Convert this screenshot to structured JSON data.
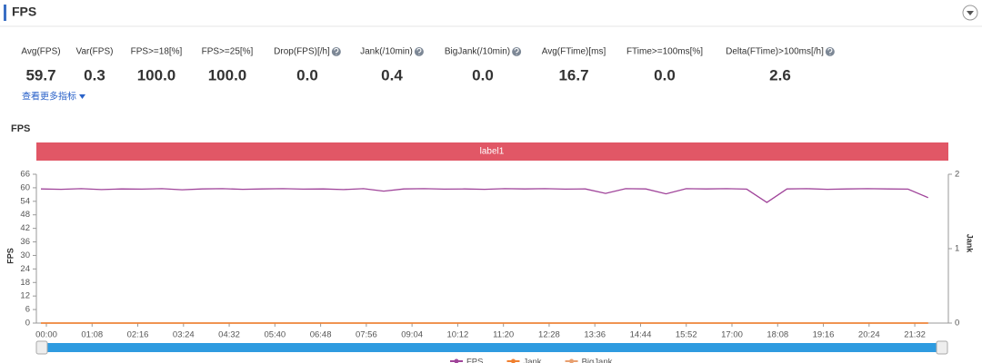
{
  "header": {
    "title": "FPS"
  },
  "metrics": [
    {
      "label": "Avg(FPS)",
      "value": "59.7"
    },
    {
      "label": "Var(FPS)",
      "value": "0.3"
    },
    {
      "label": "FPS>=18[%]",
      "value": "100.0"
    },
    {
      "label": "FPS>=25[%]",
      "value": "100.0"
    },
    {
      "label": "Drop(FPS)[/h]",
      "value": "0.0"
    },
    {
      "label": "Jank(/10min)",
      "value": "0.4"
    },
    {
      "label": "BigJank(/10min)",
      "value": "0.0"
    },
    {
      "label": "Avg(FTime)[ms]",
      "value": "16.7"
    },
    {
      "label": "FTime>=100ms[%]",
      "value": "0.0"
    },
    {
      "label": "Delta(FTime)>100ms[/h]",
      "value": "2.6"
    }
  ],
  "more_link": "查看更多指标",
  "chart_data": {
    "type": "line",
    "title": "FPS",
    "band_label": "label1",
    "y_label": "FPS",
    "y2_label": "Jank",
    "x": [
      0,
      30,
      60,
      90,
      120,
      150,
      180,
      210,
      240,
      270,
      300,
      330,
      360,
      390,
      420,
      450,
      480,
      510,
      540,
      570,
      600,
      630,
      660,
      690,
      720,
      750,
      780,
      810,
      840,
      870,
      900,
      930,
      960,
      990,
      1020,
      1050,
      1080,
      1110,
      1140,
      1170,
      1200,
      1230,
      1260,
      1290,
      1320
    ],
    "xlim": [
      0,
      1346
    ],
    "xticks": [
      {
        "value": 0,
        "label": "00:00"
      },
      {
        "value": 68,
        "label": "01:08"
      },
      {
        "value": 136,
        "label": "02:16"
      },
      {
        "value": 204,
        "label": "03:24"
      },
      {
        "value": 272,
        "label": "04:32"
      },
      {
        "value": 340,
        "label": "05:40"
      },
      {
        "value": 408,
        "label": "06:48"
      },
      {
        "value": 476,
        "label": "07:56"
      },
      {
        "value": 544,
        "label": "09:04"
      },
      {
        "value": 612,
        "label": "10:12"
      },
      {
        "value": 680,
        "label": "11:20"
      },
      {
        "value": 748,
        "label": "12:28"
      },
      {
        "value": 816,
        "label": "13:36"
      },
      {
        "value": 884,
        "label": "14:44"
      },
      {
        "value": 952,
        "label": "15:52"
      },
      {
        "value": 1020,
        "label": "17:00"
      },
      {
        "value": 1088,
        "label": "18:08"
      },
      {
        "value": 1156,
        "label": "19:16"
      },
      {
        "value": 1224,
        "label": "20:24"
      },
      {
        "value": 1292,
        "label": "21:32"
      }
    ],
    "ylim": [
      0,
      66
    ],
    "yticks": [
      0,
      6,
      12,
      18,
      24,
      30,
      36,
      42,
      48,
      54,
      60,
      66
    ],
    "y2lim": [
      0,
      2
    ],
    "y2ticks": [
      0,
      1,
      2
    ],
    "series": [
      {
        "name": "FPS",
        "color": "#a0449a",
        "values": [
          59.5,
          59.3,
          59.6,
          59.2,
          59.5,
          59.4,
          59.6,
          59.1,
          59.5,
          59.6,
          59.3,
          59.5,
          59.6,
          59.4,
          59.5,
          59.2,
          59.6,
          58.5,
          59.5,
          59.6,
          59.4,
          59.5,
          59.3,
          59.6,
          59.5,
          59.6,
          59.4,
          59.5,
          57.5,
          59.6,
          59.5,
          57.3,
          59.6,
          59.5,
          59.6,
          59.4,
          53.5,
          59.5,
          59.6,
          59.3,
          59.5,
          59.6,
          59.5,
          59.4,
          55.6
        ]
      },
      {
        "name": "Jank",
        "color": "#f08030",
        "axis": "y2",
        "values": [
          0,
          0,
          0,
          0,
          0,
          0,
          0,
          0,
          0,
          0,
          0,
          0,
          0,
          0,
          0,
          0,
          0,
          0,
          0,
          0,
          0,
          0,
          0,
          0,
          0,
          0,
          0,
          0,
          0,
          0,
          0,
          0,
          0,
          0,
          0,
          0,
          0,
          0,
          0,
          0,
          0,
          0,
          0,
          0,
          0
        ]
      },
      {
        "name": "BigJank",
        "color": "#e8a070",
        "axis": "y2",
        "values": [
          0,
          0,
          0,
          0,
          0,
          0,
          0,
          0,
          0,
          0,
          0,
          0,
          0,
          0,
          0,
          0,
          0,
          0,
          0,
          0,
          0,
          0,
          0,
          0,
          0,
          0,
          0,
          0,
          0,
          0,
          0,
          0,
          0,
          0,
          0,
          0,
          0,
          0,
          0,
          0,
          0,
          0,
          0,
          0,
          0
        ]
      }
    ]
  }
}
